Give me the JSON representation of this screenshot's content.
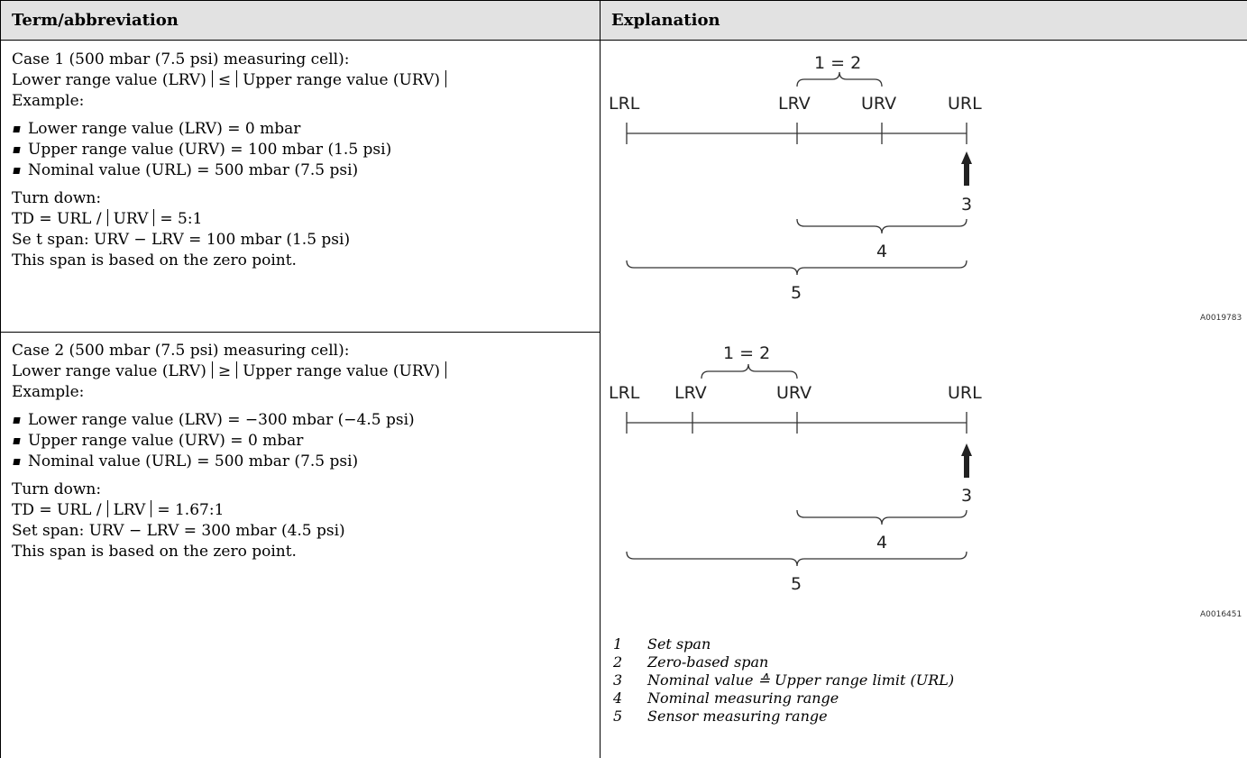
{
  "table": {
    "headers": [
      "Term/abbreviation",
      "Explanation"
    ],
    "case1": {
      "title": "Case 1 (500 mbar (7.5 psi) measuring cell):",
      "comp_left": "Lower range value (LRV)",
      "comp_op": "≤",
      "comp_right": "Upper range value (URV)",
      "example": "Example:",
      "bullets": [
        "Lower range value (LRV) = 0 mbar",
        "Upper range value (URV) = 100 mbar (1.5 psi)",
        "Nominal value (URL) = 500 mbar (7.5 psi)"
      ],
      "turn_down": "Turn down:",
      "td_prefix": "TD = URL /",
      "td_var": "URV",
      "td_suffix": "= 5:1",
      "span": "Se t span: URV − LRV = 100 mbar (1.5 psi)",
      "note": "This span is based on the zero point."
    },
    "case2": {
      "title": "Case 2 (500 mbar (7.5 psi) measuring cell):",
      "comp_left": "Lower range value (LRV)",
      "comp_op": "≥",
      "comp_right": "Upper range value (URV)",
      "example": "Example:",
      "bullets": [
        "Lower range value (LRV) = −300 mbar (−4.5 psi)",
        "Upper range value (URV) = 0 mbar",
        "Nominal value (URL) = 500 mbar (7.5 psi)"
      ],
      "turn_down": "Turn down:",
      "td_prefix": "TD = URL /",
      "td_var": "LRV",
      "td_suffix": "= 1.67:1",
      "span": "Set span: URV − LRV = 300 mbar (4.5 psi)",
      "note": "This span is based on the zero point."
    }
  },
  "diagram1": {
    "labels": {
      "lrl": "LRL",
      "lrv": "LRV",
      "urv": "URV",
      "url": "URL"
    },
    "span_label": "1 = 2",
    "callouts": [
      "3",
      "4",
      "5"
    ],
    "code": "A0019783"
  },
  "diagram2": {
    "labels": {
      "lrl": "LRL",
      "lrv": "LRV",
      "urv": "URV",
      "url": "URL"
    },
    "span_label": "1 = 2",
    "callouts": [
      "3",
      "4",
      "5"
    ],
    "code": "A0016451"
  },
  "legend": [
    {
      "num": "1",
      "text": "Set span"
    },
    {
      "num": "2",
      "text": "Zero-based span"
    },
    {
      "num": "3",
      "text": "Nominal value ≙ Upper range limit (URL)"
    },
    {
      "num": "4",
      "text": "Nominal measuring range"
    },
    {
      "num": "5",
      "text": "Sensor measuring range"
    }
  ]
}
